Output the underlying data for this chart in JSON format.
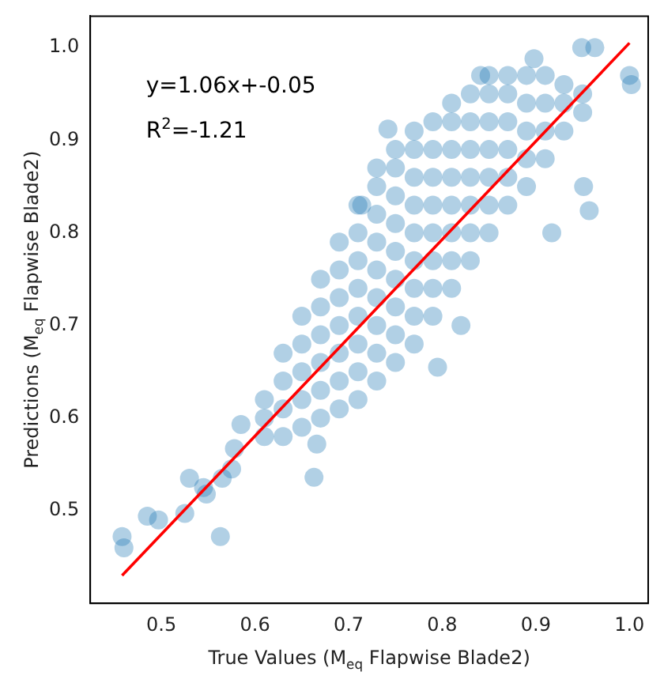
{
  "chart_data": {
    "type": "scatter",
    "xlabel": "True Values (M$_{eq}$ Flapwise Blade2)",
    "ylabel": "Predictions (M$_{eq}$ Flapwise Blade2)",
    "annotations": [
      "y=1.06x+-0.05",
      "R$^{2}$=-1.21"
    ],
    "xlim": [
      0.424,
      1.02
    ],
    "ylim": [
      0.4,
      1.034
    ],
    "xticks": [
      0.5,
      0.6,
      0.7,
      0.8,
      0.9,
      {
        "value": 1.0,
        "label": "1.0"
      }
    ],
    "yticks": [
      0.5,
      0.6,
      0.7,
      0.8,
      0.9,
      {
        "value": 1.0,
        "label": "1.0"
      }
    ],
    "grid": false,
    "legend": false,
    "marker": "circle",
    "series": [
      {
        "color": "#1f77b4",
        "x": [
          0.61,
          0.61,
          0.61,
          0.63,
          0.63,
          0.63,
          0.63,
          0.65,
          0.65,
          0.65,
          0.65,
          0.65,
          0.67,
          0.67,
          0.67,
          0.67,
          0.67,
          0.67,
          0.69,
          0.69,
          0.69,
          0.69,
          0.69,
          0.69,
          0.69,
          0.71,
          0.71,
          0.71,
          0.71,
          0.71,
          0.71,
          0.71,
          0.71,
          0.73,
          0.73,
          0.73,
          0.73,
          0.73,
          0.73,
          0.73,
          0.73,
          0.73,
          0.75,
          0.75,
          0.75,
          0.75,
          0.75,
          0.75,
          0.75,
          0.75,
          0.75,
          0.77,
          0.77,
          0.77,
          0.77,
          0.77,
          0.77,
          0.77,
          0.77,
          0.77,
          0.79,
          0.79,
          0.79,
          0.79,
          0.79,
          0.79,
          0.79,
          0.79,
          0.81,
          0.81,
          0.81,
          0.81,
          0.81,
          0.81,
          0.81,
          0.81,
          0.83,
          0.83,
          0.83,
          0.83,
          0.83,
          0.83,
          0.83,
          0.85,
          0.85,
          0.85,
          0.85,
          0.85,
          0.85,
          0.85,
          0.87,
          0.87,
          0.87,
          0.87,
          0.87,
          0.87,
          0.89,
          0.89,
          0.89,
          0.89,
          0.89,
          0.91,
          0.91,
          0.91,
          0.91,
          0.93,
          0.93,
          0.93,
          0.95,
          0.95,
          0.458,
          0.46,
          0.485,
          0.497,
          0.525,
          0.53,
          0.545,
          0.548,
          0.563,
          0.565,
          0.575,
          0.578,
          0.585,
          0.663,
          0.666,
          0.795,
          0.82,
          0.917,
          0.951,
          0.957,
          1.0,
          1.002,
          0.949,
          0.963,
          0.714,
          0.742,
          0.841,
          0.898
        ],
        "values": [
          0.58,
          0.6,
          0.62,
          0.58,
          0.61,
          0.64,
          0.67,
          0.59,
          0.62,
          0.65,
          0.68,
          0.71,
          0.6,
          0.63,
          0.66,
          0.69,
          0.72,
          0.75,
          0.61,
          0.64,
          0.67,
          0.7,
          0.73,
          0.76,
          0.79,
          0.62,
          0.65,
          0.68,
          0.71,
          0.74,
          0.77,
          0.8,
          0.83,
          0.64,
          0.67,
          0.7,
          0.73,
          0.76,
          0.79,
          0.82,
          0.85,
          0.87,
          0.66,
          0.69,
          0.72,
          0.75,
          0.78,
          0.81,
          0.84,
          0.87,
          0.89,
          0.68,
          0.71,
          0.74,
          0.77,
          0.8,
          0.83,
          0.86,
          0.89,
          0.91,
          0.71,
          0.74,
          0.77,
          0.8,
          0.83,
          0.86,
          0.89,
          0.92,
          0.74,
          0.77,
          0.8,
          0.83,
          0.86,
          0.89,
          0.92,
          0.94,
          0.77,
          0.8,
          0.83,
          0.86,
          0.89,
          0.92,
          0.95,
          0.8,
          0.83,
          0.86,
          0.89,
          0.92,
          0.95,
          0.97,
          0.83,
          0.86,
          0.89,
          0.92,
          0.95,
          0.97,
          0.85,
          0.88,
          0.91,
          0.94,
          0.97,
          0.88,
          0.91,
          0.94,
          0.97,
          0.91,
          0.94,
          0.96,
          0.93,
          0.95,
          0.472,
          0.46,
          0.494,
          0.49,
          0.497,
          0.535,
          0.525,
          0.518,
          0.472,
          0.535,
          0.545,
          0.567,
          0.593,
          0.536,
          0.572,
          0.655,
          0.7,
          0.8,
          0.85,
          0.824,
          0.97,
          0.96,
          1.0,
          1.0,
          0.83,
          0.912,
          0.97,
          0.988
        ]
      },
      {
        "type": "line",
        "color": "#ff0000",
        "x": [
          0.458,
          1.0
        ],
        "values": [
          0.43,
          1.005
        ],
        "marker": "none"
      }
    ]
  }
}
